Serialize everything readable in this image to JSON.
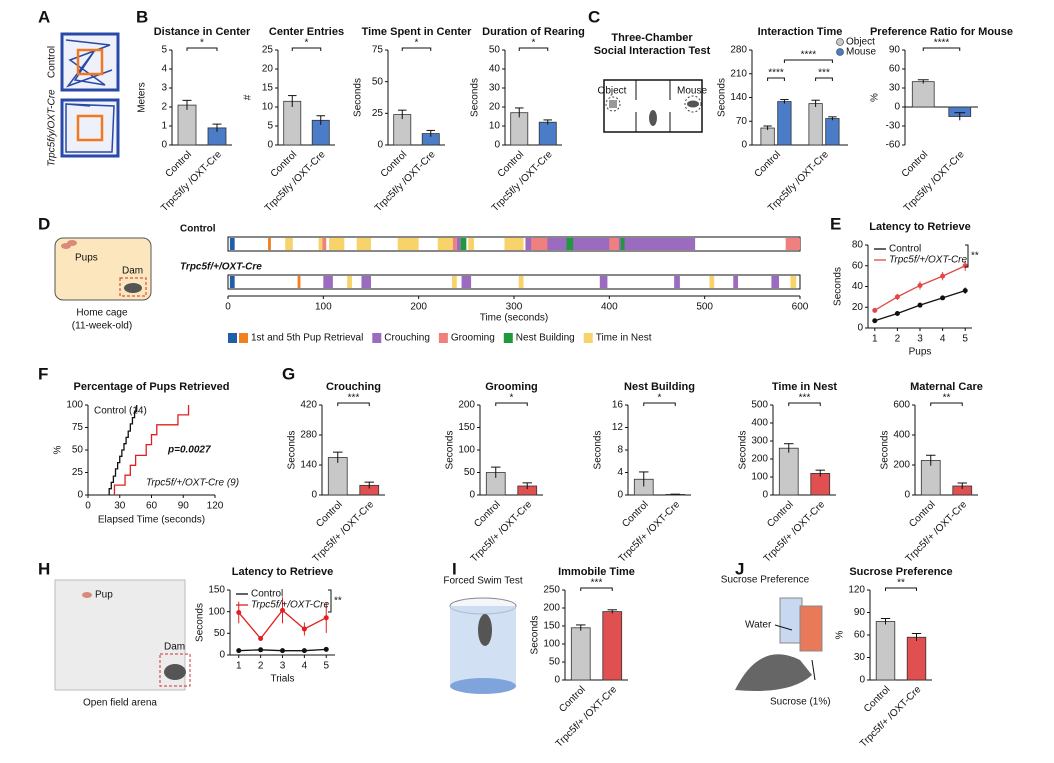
{
  "panel_labels": [
    "A",
    "B",
    "C",
    "D",
    "E",
    "F",
    "G",
    "H",
    "I",
    "J"
  ],
  "illustrations": {
    "a_control": "Control",
    "a_mutant": "Trpc5f/y/OXT-Cre",
    "c_title_1": "Three-Chamber",
    "c_title_2": "Social Interaction Test",
    "c_object": "Object",
    "c_mouse": "Mouse",
    "d_pups": "Pups",
    "d_dam": "Dam",
    "d_cage": "Home cage",
    "d_age": "(11-week-old)",
    "h_pup": "Pup",
    "h_dam": "Dam",
    "h_arena": "Open field arena",
    "i_title": "Forced Swim Test",
    "j_title": "Sucrose Preference",
    "j_water": "Water",
    "j_sucrose": "Sucrose (1%)"
  },
  "chart_data": [
    {
      "type": "bar",
      "title": "Distance in Center",
      "ylabel": "Meters",
      "categories": [
        "Control",
        "Trpc5f/y /OXT-Cre"
      ],
      "values": [
        2.1,
        0.9
      ],
      "errors": [
        0.25,
        0.2
      ],
      "colors": [
        "#c8c8c8",
        "#4a7cc7"
      ],
      "ylim": [
        0,
        5
      ],
      "yticks": [
        0,
        1,
        2,
        3,
        4,
        5
      ],
      "significance": "*"
    },
    {
      "type": "bar",
      "title": "Center Entries",
      "ylabel": "#",
      "categories": [
        "Control",
        "Trpc5f/y /OXT-Cre"
      ],
      "values": [
        11.5,
        6.5
      ],
      "errors": [
        1.5,
        1.2
      ],
      "colors": [
        "#c8c8c8",
        "#4a7cc7"
      ],
      "ylim": [
        0,
        25
      ],
      "yticks": [
        0,
        5,
        10,
        15,
        20,
        25
      ],
      "significance": "*"
    },
    {
      "type": "bar",
      "title": "Time Spent in Center",
      "ylabel": "Seconds",
      "categories": [
        "Control",
        "Trpc5f/y /OXT-Cre"
      ],
      "values": [
        24,
        9
      ],
      "errors": [
        3.5,
        2.5
      ],
      "colors": [
        "#c8c8c8",
        "#4a7cc7"
      ],
      "ylim": [
        0,
        75
      ],
      "yticks": [
        0,
        25,
        50,
        75
      ],
      "significance": "*"
    },
    {
      "type": "bar",
      "title": "Duration of Rearing",
      "ylabel": "Seconds",
      "categories": [
        "Control",
        "Trpc5f/y /OXT-Cre"
      ],
      "values": [
        17,
        12
      ],
      "errors": [
        2.5,
        1.2
      ],
      "colors": [
        "#c8c8c8",
        "#4a7cc7"
      ],
      "ylim": [
        0,
        50
      ],
      "yticks": [
        0,
        10,
        20,
        30,
        40,
        50
      ],
      "significance": "*"
    },
    {
      "type": "grouped_bar",
      "title": "Interaction Time",
      "ylabel": "Seconds",
      "categories": [
        "Control",
        "Trpc5f/y /OXT-Cre"
      ],
      "series": [
        {
          "name": "Object",
          "color": "#c8c8c8",
          "values": [
            50,
            122
          ],
          "errors": [
            6,
            10
          ]
        },
        {
          "name": "Mouse",
          "color": "#4a7cc7",
          "values": [
            128,
            78
          ],
          "errors": [
            6,
            5
          ]
        }
      ],
      "ylim": [
        0,
        280
      ],
      "yticks": [
        0,
        70,
        140,
        210,
        280
      ],
      "annotations": [
        "****",
        "***",
        "****"
      ]
    },
    {
      "type": "bar",
      "title": "Preference Ratio for Mouse",
      "ylabel": "%",
      "categories": [
        "Control",
        "Trpc5f/y /OXT-Cre"
      ],
      "values": [
        40,
        -15
      ],
      "errors": [
        3,
        6
      ],
      "colors": [
        "#c8c8c8",
        "#4a7cc7"
      ],
      "ylim": [
        -60,
        90
      ],
      "yticks": [
        -60,
        -30,
        0,
        30,
        60,
        90
      ],
      "significance": "****"
    },
    {
      "type": "timeline",
      "xlabel": "Time (seconds)",
      "xlim": [
        0,
        600
      ],
      "xticks": [
        0,
        100,
        200,
        300,
        400,
        500,
        600
      ],
      "legend": [
        {
          "name": "1st and 5th Pup Retrieval",
          "color": [
            "#1f5fa8",
            "#f08020"
          ]
        },
        {
          "name": "Crouching",
          "color": "#9b6bc0"
        },
        {
          "name": "Grooming",
          "color": "#f08080"
        },
        {
          "name": "Nest Building",
          "color": "#1e9a3c"
        },
        {
          "name": "Time in Nest",
          "color": "#f7d36a"
        }
      ],
      "rows": [
        {
          "name": "Control",
          "segments": [
            {
              "start": 2,
              "end": 7,
              "color": "#1f5fa8"
            },
            {
              "start": 42,
              "end": 45,
              "color": "#f08020"
            },
            {
              "start": 60,
              "end": 68,
              "color": "#f7d36a"
            },
            {
              "start": 95,
              "end": 99,
              "color": "#f7d36a"
            },
            {
              "start": 99,
              "end": 103,
              "color": "#f08080"
            },
            {
              "start": 106,
              "end": 122,
              "color": "#f7d36a"
            },
            {
              "start": 135,
              "end": 150,
              "color": "#f7d36a"
            },
            {
              "start": 178,
              "end": 200,
              "color": "#f7d36a"
            },
            {
              "start": 220,
              "end": 236,
              "color": "#f7d36a"
            },
            {
              "start": 236,
              "end": 240,
              "color": "#f08080"
            },
            {
              "start": 240,
              "end": 244,
              "color": "#9b6bc0"
            },
            {
              "start": 244,
              "end": 250,
              "color": "#1e9a3c"
            },
            {
              "start": 252,
              "end": 258,
              "color": "#f7d36a"
            },
            {
              "start": 290,
              "end": 310,
              "color": "#f7d36a"
            },
            {
              "start": 312,
              "end": 490,
              "color": "#9b6bc0"
            },
            {
              "start": 318,
              "end": 335,
              "color": "#f08080"
            },
            {
              "start": 355,
              "end": 362,
              "color": "#1e9a3c"
            },
            {
              "start": 400,
              "end": 410,
              "color": "#f08080"
            },
            {
              "start": 412,
              "end": 416,
              "color": "#1e9a3c"
            },
            {
              "start": 585,
              "end": 600,
              "color": "#f08080"
            }
          ]
        },
        {
          "name": "Trpc5f/+/OXT-Cre",
          "segments": [
            {
              "start": 2,
              "end": 7,
              "color": "#1f5fa8"
            },
            {
              "start": 73,
              "end": 76,
              "color": "#f08020"
            },
            {
              "start": 100,
              "end": 110,
              "color": "#9b6bc0"
            },
            {
              "start": 125,
              "end": 130,
              "color": "#f7d36a"
            },
            {
              "start": 140,
              "end": 150,
              "color": "#9b6bc0"
            },
            {
              "start": 235,
              "end": 240,
              "color": "#f7d36a"
            },
            {
              "start": 245,
              "end": 255,
              "color": "#9b6bc0"
            },
            {
              "start": 305,
              "end": 310,
              "color": "#f7d36a"
            },
            {
              "start": 390,
              "end": 398,
              "color": "#9b6bc0"
            },
            {
              "start": 468,
              "end": 474,
              "color": "#9b6bc0"
            },
            {
              "start": 505,
              "end": 510,
              "color": "#f7d36a"
            },
            {
              "start": 530,
              "end": 535,
              "color": "#9b6bc0"
            },
            {
              "start": 570,
              "end": 578,
              "color": "#9b6bc0"
            },
            {
              "start": 590,
              "end": 596,
              "color": "#f7d36a"
            }
          ]
        }
      ]
    },
    {
      "type": "line",
      "title": "Latency to Retrieve",
      "xlabel": "Pups",
      "ylabel": "Seconds",
      "x": [
        1,
        2,
        3,
        4,
        5
      ],
      "series": [
        {
          "name": "Control",
          "color": "#111111",
          "values": [
            7,
            14,
            22,
            29,
            36
          ],
          "errors": [
            1,
            1,
            1.5,
            2,
            3
          ]
        },
        {
          "name": "Trpc5f/+/OXT-Cre",
          "color": "#e04848",
          "values": [
            17,
            30,
            41,
            50,
            60
          ],
          "errors": [
            2,
            3,
            4,
            4,
            5
          ]
        }
      ],
      "xlim": [
        0.7,
        5.3
      ],
      "xticks": [
        1,
        2,
        3,
        4,
        5
      ],
      "ylim": [
        0,
        80
      ],
      "yticks": [
        0,
        20,
        40,
        60,
        80
      ],
      "significance": "**"
    },
    {
      "type": "step",
      "title": "Percentage of Pups Retrieved",
      "xlabel": "Elapsed Time (seconds)",
      "ylabel": "%",
      "series": [
        {
          "name": "Control (14)",
          "color": "#111111",
          "x": [
            20,
            22,
            24,
            26,
            28,
            30,
            32,
            34,
            36,
            38,
            40,
            42,
            44,
            46
          ],
          "values": [
            7,
            14,
            21,
            29,
            36,
            43,
            50,
            57,
            64,
            71,
            79,
            86,
            93,
            100
          ]
        },
        {
          "name": "Trpc5f/+/OXT-Cre (9)",
          "color": "#e02020",
          "x": [
            25,
            35,
            40,
            45,
            55,
            60,
            65,
            85,
            95
          ],
          "values": [
            11,
            22,
            33,
            44,
            56,
            67,
            78,
            89,
            100
          ]
        }
      ],
      "annotation": "p=0.0027",
      "xlim": [
        0,
        120
      ],
      "xticks": [
        0,
        30,
        60,
        90,
        120
      ],
      "ylim": [
        0,
        100
      ],
      "yticks": [
        0,
        25,
        50,
        75,
        100
      ]
    },
    {
      "type": "bar",
      "title": "Crouching",
      "ylabel": "Seconds",
      "categories": [
        "Control",
        "Trpc5f/+ /OXT-Cre"
      ],
      "values": [
        175,
        45
      ],
      "errors": [
        25,
        15
      ],
      "colors": [
        "#c8c8c8",
        "#e05050"
      ],
      "ylim": [
        0,
        420
      ],
      "yticks": [
        0,
        140,
        280,
        420
      ],
      "significance": "***"
    },
    {
      "type": "bar",
      "title": "Grooming",
      "ylabel": "Seconds",
      "categories": [
        "Control",
        "Trpc5f/+ /OXT-Cre"
      ],
      "values": [
        50,
        20
      ],
      "errors": [
        12,
        7
      ],
      "colors": [
        "#c8c8c8",
        "#e05050"
      ],
      "ylim": [
        0,
        200
      ],
      "yticks": [
        0,
        50,
        100,
        150,
        200
      ],
      "significance": "*"
    },
    {
      "type": "bar",
      "title": "Nest Building",
      "ylabel": "Seconds",
      "categories": [
        "Control",
        "Trpc5f/+ /OXT-Cre"
      ],
      "values": [
        2.8,
        0.1
      ],
      "errors": [
        1.3,
        0.05
      ],
      "colors": [
        "#c8c8c8",
        "#e05050"
      ],
      "ylim": [
        0,
        16
      ],
      "yticks": [
        0,
        4,
        8,
        12,
        16
      ],
      "significance": "*"
    },
    {
      "type": "bar",
      "title": "Time in Nest",
      "ylabel": "Seconds",
      "categories": [
        "Control",
        "Trpc5f/+ /OXT-Cre"
      ],
      "values": [
        260,
        120
      ],
      "errors": [
        25,
        18
      ],
      "colors": [
        "#c8c8c8",
        "#e05050"
      ],
      "ylim": [
        0,
        500
      ],
      "yticks": [
        0,
        100,
        200,
        300,
        400,
        500
      ],
      "significance": "***"
    },
    {
      "type": "bar",
      "title": "Maternal Care",
      "ylabel": "Seconds",
      "categories": [
        "Control",
        "Trpc5f/+ /OXT-Cre"
      ],
      "values": [
        230,
        60
      ],
      "errors": [
        35,
        20
      ],
      "colors": [
        "#c8c8c8",
        "#e05050"
      ],
      "ylim": [
        0,
        600
      ],
      "yticks": [
        0,
        200,
        400,
        600
      ],
      "significance": "**"
    },
    {
      "type": "line",
      "title": "Latency to Retrieve",
      "xlabel": "Trials",
      "ylabel": "Seconds",
      "x": [
        1,
        2,
        3,
        4,
        5
      ],
      "series": [
        {
          "name": "Control",
          "color": "#111111",
          "values": [
            10,
            12,
            10,
            10,
            13
          ],
          "errors": [
            2,
            1,
            2,
            1,
            3
          ]
        },
        {
          "name": "Trpc5f/+/OXT-Cre",
          "color": "#e02020",
          "values": [
            98,
            38,
            103,
            60,
            86
          ],
          "errors": [
            25,
            5,
            30,
            15,
            35
          ]
        }
      ],
      "xlim": [
        0.6,
        5.4
      ],
      "xticks": [
        1,
        2,
        3,
        4,
        5
      ],
      "ylim": [
        0,
        150
      ],
      "yticks": [
        0,
        50,
        100,
        150
      ],
      "significance": "**"
    },
    {
      "type": "bar",
      "title": "Immobile Time",
      "ylabel": "Seconds",
      "categories": [
        "Control",
        "Trpc5f/+ /OXT-Cre"
      ],
      "values": [
        145,
        190
      ],
      "errors": [
        8,
        5
      ],
      "colors": [
        "#c8c8c8",
        "#e05050"
      ],
      "ylim": [
        0,
        250
      ],
      "yticks": [
        0,
        50,
        100,
        150,
        200,
        250
      ],
      "significance": "***"
    },
    {
      "type": "bar",
      "title": "Sucrose Preference",
      "ylabel": "%",
      "categories": [
        "Control",
        "Trpc5f/+ /OXT-Cre"
      ],
      "values": [
        78,
        57
      ],
      "errors": [
        4,
        5
      ],
      "colors": [
        "#c8c8c8",
        "#e05050"
      ],
      "ylim": [
        0,
        120
      ],
      "yticks": [
        0,
        30,
        60,
        90,
        120
      ],
      "significance": "**"
    }
  ]
}
